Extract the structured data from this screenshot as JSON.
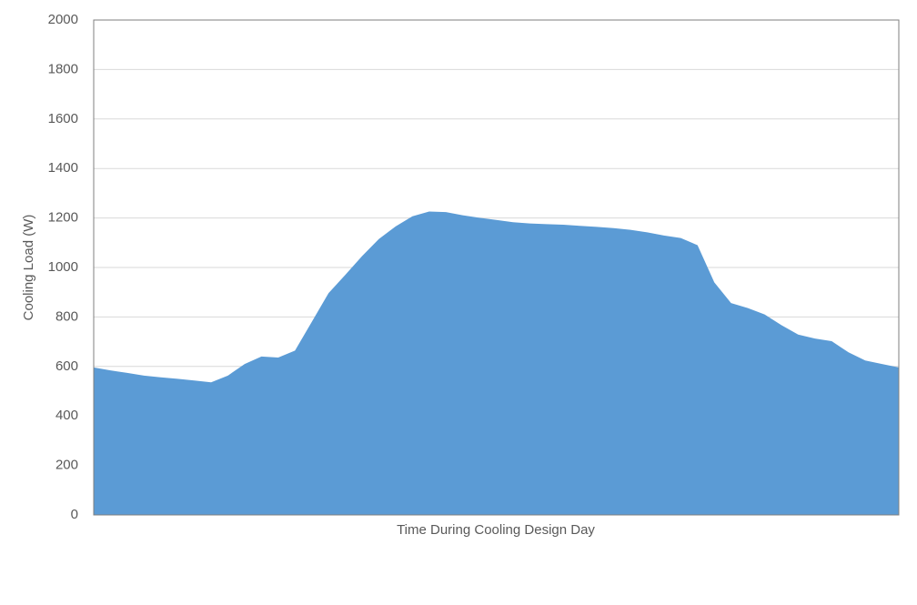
{
  "chart_data": {
    "type": "area",
    "y_label": "Cooling Load  (W)",
    "x_label": "Time During Cooling Design Day",
    "color": "#5b9bd5",
    "values": [
      596,
      584,
      574,
      563,
      556,
      550,
      543,
      536,
      563,
      610,
      640,
      636,
      664,
      780,
      896,
      970,
      1046,
      1115,
      1166,
      1207,
      1226,
      1224,
      1211,
      1201,
      1192,
      1183,
      1178,
      1175,
      1173,
      1168,
      1164,
      1159,
      1152,
      1142,
      1129,
      1119,
      1090,
      940,
      856,
      836,
      810,
      767,
      729,
      713,
      702,
      657,
      624,
      610,
      596
    ],
    "ylim": [
      0,
      2000
    ],
    "yticks": [
      0,
      200,
      400,
      600,
      800,
      1000,
      1200,
      1400,
      1600,
      1800,
      2000
    ],
    "grid": true
  }
}
